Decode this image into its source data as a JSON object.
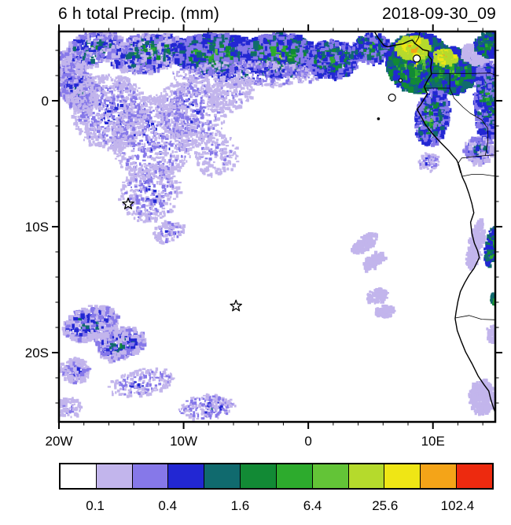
{
  "title": "6 h total Precip. (mm)",
  "timestamp": "2018-09-30_09",
  "map": {
    "lon_min": -20,
    "lon_max": 15,
    "lat_min": -25.5,
    "lat_max": 5.5,
    "x_ticks": [
      {
        "lon": -20,
        "label": "20W"
      },
      {
        "lon": -10,
        "label": "10W"
      },
      {
        "lon": 0,
        "label": "0"
      },
      {
        "lon": 10,
        "label": "10E"
      }
    ],
    "y_ticks": [
      {
        "lat": 0,
        "label": "0"
      },
      {
        "lat": -10,
        "label": "10S"
      },
      {
        "lat": -20,
        "label": "20S"
      }
    ],
    "minor_tick_step": 2,
    "stars": [
      {
        "lon": -14.45,
        "lat": -8.2
      },
      {
        "lon": -5.8,
        "lat": -16.3
      }
    ],
    "coastline": [
      [
        5.3,
        5.5
      ],
      [
        5.6,
        5.0
      ],
      [
        6.05,
        4.4
      ],
      [
        6.35,
        4.28
      ],
      [
        7.0,
        4.42
      ],
      [
        7.6,
        4.52
      ],
      [
        8.1,
        4.75
      ],
      [
        8.35,
        4.82
      ],
      [
        8.55,
        4.55
      ],
      [
        8.9,
        4.3
      ],
      [
        9.2,
        4.05
      ],
      [
        9.65,
        3.95
      ],
      [
        9.62,
        3.6
      ],
      [
        9.9,
        3.25
      ],
      [
        9.82,
        2.6
      ],
      [
        9.88,
        2.1
      ],
      [
        9.55,
        1.6
      ],
      [
        9.3,
        1.1
      ],
      [
        9.55,
        0.55
      ],
      [
        9.3,
        0.15
      ],
      [
        9.0,
        -0.35
      ],
      [
        8.72,
        -0.68
      ],
      [
        9.05,
        -1.25
      ],
      [
        9.4,
        -1.9
      ],
      [
        9.95,
        -2.6
      ],
      [
        10.65,
        -3.35
      ],
      [
        11.25,
        -3.95
      ],
      [
        11.9,
        -4.7
      ],
      [
        12.1,
        -5.15
      ],
      [
        12.35,
        -6.05
      ],
      [
        12.62,
        -6.62
      ],
      [
        12.88,
        -7.35
      ],
      [
        13.12,
        -8.15
      ],
      [
        13.28,
        -8.9
      ],
      [
        13.02,
        -9.65
      ],
      [
        13.12,
        -10.5
      ],
      [
        13.32,
        -11.3
      ],
      [
        13.58,
        -11.9
      ],
      [
        13.72,
        -12.45
      ],
      [
        13.3,
        -13.3
      ],
      [
        12.9,
        -13.85
      ],
      [
        12.55,
        -14.45
      ],
      [
        12.2,
        -15.15
      ],
      [
        12.0,
        -15.95
      ],
      [
        11.85,
        -16.8
      ],
      [
        11.78,
        -17.3
      ],
      [
        11.95,
        -18.25
      ],
      [
        12.25,
        -19.05
      ],
      [
        12.62,
        -19.95
      ],
      [
        13.12,
        -20.85
      ],
      [
        13.62,
        -21.85
      ],
      [
        14.1,
        -22.55
      ],
      [
        14.48,
        -23.05
      ],
      [
        14.62,
        -23.65
      ],
      [
        14.88,
        -24.45
      ],
      [
        15.1,
        -25.0
      ]
    ],
    "borders": [
      [
        [
          8.6,
          4.6
        ],
        [
          8.85,
          5.0
        ],
        [
          8.95,
          5.5
        ]
      ],
      [
        [
          9.85,
          2.17
        ],
        [
          11.35,
          2.17
        ]
      ],
      [
        [
          11.35,
          2.17
        ],
        [
          11.35,
          1.0
        ]
      ],
      [
        [
          9.3,
          1.0
        ],
        [
          11.35,
          1.0
        ]
      ],
      [
        [
          11.35,
          2.17
        ],
        [
          13.2,
          2.17
        ],
        [
          14.6,
          2.2
        ],
        [
          15.1,
          2.0
        ]
      ],
      [
        [
          11.35,
          1.0
        ],
        [
          11.7,
          0.2
        ],
        [
          12.4,
          -0.5
        ],
        [
          13.0,
          -1.0
        ],
        [
          13.9,
          -1.5
        ],
        [
          14.4,
          -2.2
        ],
        [
          14.4,
          -3.3
        ],
        [
          14.2,
          -4.35
        ]
      ],
      [
        [
          14.2,
          -4.35
        ],
        [
          13.1,
          -4.45
        ],
        [
          12.3,
          -4.55
        ],
        [
          12.0,
          -5.0
        ]
      ],
      [
        [
          14.2,
          -4.35
        ],
        [
          15.1,
          -4.3
        ]
      ],
      [
        [
          12.0,
          -5.0
        ],
        [
          12.22,
          -5.75
        ]
      ],
      [
        [
          12.35,
          -6.0
        ],
        [
          13.1,
          -5.85
        ],
        [
          14.0,
          -5.85
        ],
        [
          15.1,
          -6.0
        ]
      ],
      [
        [
          11.78,
          -17.25
        ],
        [
          12.9,
          -17.05
        ],
        [
          13.9,
          -17.35
        ],
        [
          15.1,
          -17.4
        ]
      ]
    ],
    "islands": [
      {
        "lon": 6.72,
        "lat": 0.25,
        "r": 4.5,
        "fill": false
      },
      {
        "lon": 7.4,
        "lat": 1.62,
        "r": 2.0,
        "fill": false
      },
      {
        "lon": 8.7,
        "lat": 3.35,
        "r": 4.5,
        "fill": false
      },
      {
        "lon": 5.63,
        "lat": -1.43,
        "r": 1.8,
        "fill": true
      }
    ]
  },
  "colorbar": {
    "colors": [
      "#ffffff",
      "#c2b5ec",
      "#8678e9",
      "#2227d3",
      "#106a6e",
      "#128a35",
      "#2dab2d",
      "#63c437",
      "#b5da2c",
      "#efe615",
      "#f4a418",
      "#ed2a0f"
    ],
    "tick_labels": [
      {
        "text": "0.1",
        "boundary": 1
      },
      {
        "text": "0.4",
        "boundary": 3
      },
      {
        "text": "1.6",
        "boundary": 5
      },
      {
        "text": "6.4",
        "boundary": 7
      },
      {
        "text": "25.6",
        "boundary": 9
      },
      {
        "text": "102.4",
        "boundary": 11
      }
    ]
  },
  "chart_data": {
    "type": "heatmap",
    "title": "6 h total Precip. (mm)",
    "timestamp": "2018-09-30_09",
    "units": "mm",
    "lon_range": [
      -20,
      15
    ],
    "lat_range": [
      -25.5,
      5.5
    ],
    "levels_mm": [
      0.1,
      0.2,
      0.4,
      0.8,
      1.6,
      3.2,
      6.4,
      12.8,
      25.6,
      51.2,
      102.4
    ],
    "labeled_levels": [
      0.1,
      0.4,
      1.6,
      6.4,
      25.6,
      102.4
    ],
    "region_fields": [
      "lon_center",
      "lat_center",
      "lon_extent",
      "lat_extent",
      "rotation_deg",
      "speckle_count",
      "speckle_px",
      "level_min_idx",
      "level_max_idx"
    ],
    "regions": [
      [
        -17.5,
        4.2,
        5,
        2.6,
        -20,
        450,
        4,
        1,
        6
      ],
      [
        -13,
        3.9,
        6,
        3,
        -10,
        700,
        4,
        1,
        7
      ],
      [
        -7.5,
        3.9,
        7,
        3,
        0,
        1600,
        5,
        2,
        8
      ],
      [
        -2.5,
        3.8,
        6,
        3.2,
        0,
        1500,
        5,
        2,
        8
      ],
      [
        -5,
        2.2,
        12,
        2,
        0,
        500,
        3,
        1,
        4
      ],
      [
        1.8,
        3.4,
        4,
        3,
        0,
        700,
        4,
        2,
        7
      ],
      [
        5,
        4.3,
        3,
        2.2,
        0,
        350,
        4,
        2,
        7
      ],
      [
        8.7,
        3.2,
        5,
        4.5,
        0,
        1800,
        5,
        3,
        9
      ],
      [
        8.2,
        4.4,
        2.5,
        1.6,
        0,
        220,
        5,
        8,
        10
      ],
      [
        11.3,
        2.6,
        4,
        3.5,
        0,
        900,
        5,
        3,
        8
      ],
      [
        10.9,
        3.6,
        1.8,
        1.2,
        0,
        120,
        4,
        8,
        10
      ],
      [
        9.8,
        -1.2,
        2.6,
        4.5,
        10,
        600,
        4,
        2,
        7
      ],
      [
        14.2,
        0.2,
        2,
        6.5,
        0,
        600,
        4,
        2,
        6
      ],
      [
        13.6,
        -3.8,
        2.4,
        2,
        0,
        250,
        4,
        1,
        5
      ],
      [
        -18.7,
        1.2,
        2.8,
        4.2,
        -30,
        550,
        3.5,
        1,
        4
      ],
      [
        -16,
        -0.8,
        6,
        6,
        -35,
        900,
        3,
        1,
        3
      ],
      [
        -12.5,
        -2.8,
        7,
        6.5,
        -35,
        800,
        3,
        1,
        3
      ],
      [
        -9.5,
        -0.8,
        5.5,
        5.5,
        -40,
        550,
        3,
        1,
        3
      ],
      [
        -6.2,
        0.6,
        4,
        2.5,
        -30,
        200,
        3,
        1,
        2
      ],
      [
        -12.8,
        -7.2,
        5,
        4.5,
        -30,
        380,
        3,
        1,
        3
      ],
      [
        -7.5,
        -4.2,
        3.5,
        3.5,
        -30,
        180,
        3,
        1,
        2
      ],
      [
        -11.3,
        -10.3,
        2.5,
        1.6,
        -20,
        120,
        3,
        1,
        3
      ],
      [
        -17.6,
        -17.6,
        4.5,
        2.6,
        -15,
        420,
        4,
        1,
        5
      ],
      [
        -15.2,
        -19.2,
        4,
        2.4,
        -15,
        320,
        4,
        1,
        5
      ],
      [
        -18.8,
        -21.3,
        2.6,
        1.8,
        0,
        180,
        3.5,
        1,
        3
      ],
      [
        -13.5,
        -22.3,
        5.5,
        2,
        -10,
        200,
        3,
        1,
        3
      ],
      [
        -8.2,
        -24.2,
        4.5,
        1.8,
        -5,
        200,
        3,
        1,
        4
      ],
      [
        -19.3,
        -24.3,
        2,
        1.6,
        0,
        90,
        3,
        1,
        2
      ],
      [
        4.4,
        -11.2,
        2.4,
        1,
        -35,
        110,
        4,
        1,
        1
      ],
      [
        5.1,
        -12.6,
        2,
        0.9,
        -35,
        90,
        4,
        1,
        1
      ],
      [
        5.4,
        -15.4,
        1.6,
        1,
        -20,
        90,
        4,
        1,
        1
      ],
      [
        6,
        -16.6,
        1.4,
        0.9,
        -20,
        70,
        4,
        1,
        1
      ],
      [
        13.3,
        -11.3,
        1,
        4,
        12,
        200,
        4,
        1,
        1
      ],
      [
        13.8,
        -23.4,
        2,
        2.6,
        0,
        260,
        4,
        1,
        1
      ],
      [
        14.7,
        -18.4,
        0.8,
        1.4,
        0,
        60,
        3.5,
        1,
        1
      ],
      [
        13.3,
        3.9,
        2.2,
        1.7,
        0,
        170,
        4,
        1,
        1
      ],
      [
        14.6,
        -11.4,
        0.8,
        3.2,
        10,
        170,
        3.5,
        3,
        7
      ],
      [
        14.8,
        -15.7,
        0.5,
        0.9,
        0,
        40,
        3,
        4,
        6
      ],
      [
        9.6,
        -4.8,
        1.6,
        1.4,
        0,
        90,
        3,
        1,
        3
      ],
      [
        14.3,
        4.6,
        2,
        1.8,
        0,
        260,
        4,
        3,
        8
      ]
    ]
  }
}
